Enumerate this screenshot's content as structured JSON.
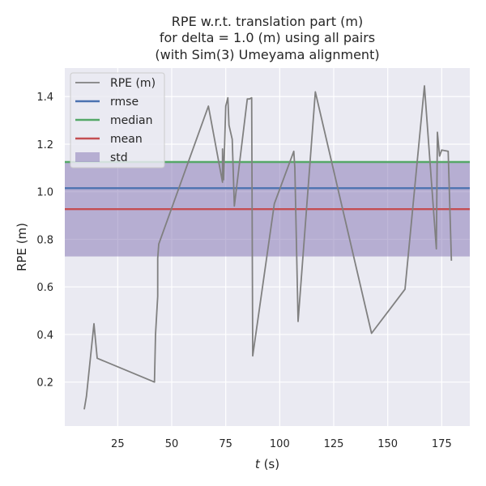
{
  "chart_data": {
    "type": "line",
    "title_lines": [
      "RPE w.r.t. translation part (m)",
      "for delta = 1.0 (m) using all pairs",
      "(with Sim(3) Umeyama alignment)"
    ],
    "xlabel_italic": "t",
    "xlabel_rest": " (s)",
    "ylabel": "RPE (m)",
    "xlim": [
      0.5,
      188
    ],
    "ylim": [
      0.015,
      1.52
    ],
    "x_ticks": [
      25,
      50,
      75,
      100,
      125,
      150,
      175
    ],
    "y_ticks": [
      0.2,
      0.4,
      0.6,
      0.8,
      1.0,
      1.2,
      1.4
    ],
    "grid": true,
    "legend_position": "top-left",
    "series": [
      {
        "name": "RPE (m)",
        "color": "#808080",
        "points": [
          [
            9.5,
            0.085
          ],
          [
            10.5,
            0.14
          ],
          [
            14,
            0.445
          ],
          [
            15.5,
            0.3
          ],
          [
            42,
            0.2
          ],
          [
            42.5,
            0.4
          ],
          [
            43.5,
            0.56
          ],
          [
            43.5,
            0.72
          ],
          [
            44,
            0.78
          ],
          [
            67,
            1.36
          ],
          [
            73.5,
            1.04
          ],
          [
            73.5,
            1.18
          ],
          [
            74,
            1.05
          ],
          [
            75,
            1.36
          ],
          [
            76,
            1.395
          ],
          [
            76.5,
            1.28
          ],
          [
            78,
            1.22
          ],
          [
            79,
            0.94
          ],
          [
            85,
            1.39
          ],
          [
            86,
            1.39
          ],
          [
            87,
            1.395
          ],
          [
            87.5,
            0.31
          ],
          [
            97.5,
            0.95
          ],
          [
            106.5,
            1.17
          ],
          [
            107,
            1.1
          ],
          [
            108.5,
            0.455
          ],
          [
            116.5,
            1.42
          ],
          [
            142.5,
            0.405
          ],
          [
            158,
            0.59
          ],
          [
            167,
            1.445
          ],
          [
            172.5,
            0.76
          ],
          [
            173,
            1.25
          ],
          [
            174,
            1.15
          ],
          [
            175,
            1.175
          ],
          [
            178,
            1.17
          ],
          [
            179.5,
            0.71
          ]
        ]
      },
      {
        "name": "rmse",
        "color": "#4c72b0",
        "value": 1.015
      },
      {
        "name": "median",
        "color": "#55a868",
        "value": 1.125
      },
      {
        "name": "mean",
        "color": "#c44e52",
        "value": 0.927
      },
      {
        "name": "std",
        "color": "#8172b2",
        "range": [
          0.728,
          1.127
        ]
      }
    ]
  }
}
